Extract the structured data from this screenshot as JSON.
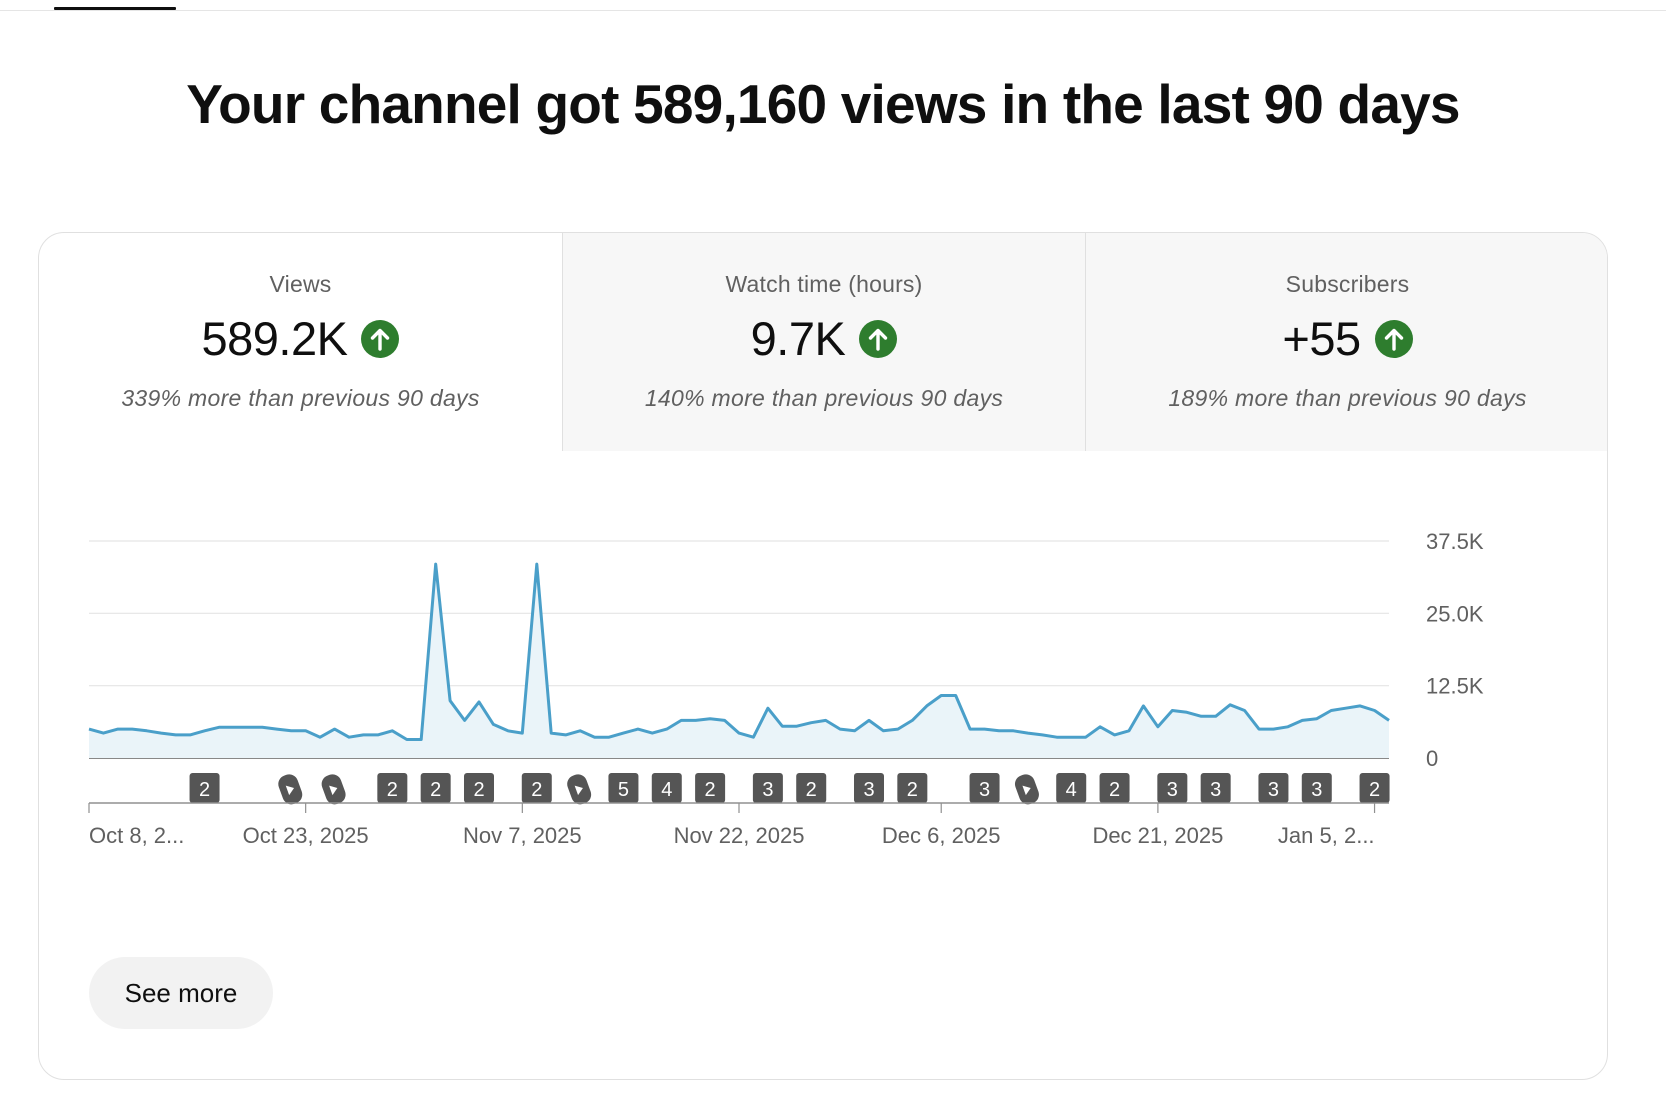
{
  "headline": "Your channel got 589,160 views in the last 90 days",
  "metrics": [
    {
      "label": "Views",
      "value": "589.2K",
      "compare": "339% more than previous 90 days",
      "trend": "up",
      "selected": true
    },
    {
      "label": "Watch time (hours)",
      "value": "9.7K",
      "compare": "140% more than previous 90 days",
      "trend": "up",
      "selected": false
    },
    {
      "label": "Subscribers",
      "value": "+55",
      "compare": "189% more than previous 90 days",
      "trend": "up",
      "selected": false
    }
  ],
  "colors": {
    "line": "#4a9fc9",
    "area": "#eaf4f9",
    "trend_up": "#2e7d2e",
    "marker_bg": "#555555"
  },
  "chart_data": {
    "type": "line",
    "series": [
      {
        "values": [
          5000,
          4300,
          5000,
          5000,
          4700,
          4300,
          4000,
          4000,
          4700,
          5300,
          5300,
          5300,
          5300,
          5000,
          4700,
          4700,
          3600,
          5000,
          3600,
          4000,
          4000,
          4700,
          3200,
          3200,
          33500,
          9900,
          6500,
          9700,
          5800,
          4700,
          4300,
          33500,
          4300,
          4000,
          4700,
          3600,
          3600,
          4300,
          5000,
          4300,
          5000,
          6500,
          6500,
          6800,
          6500,
          4300,
          3600,
          8600,
          5500,
          5500,
          6100,
          6500,
          5000,
          4700,
          6500,
          4700,
          5000,
          6500,
          9000,
          10800,
          10800,
          5000,
          5000,
          4700,
          4700,
          4300,
          4000,
          3600,
          3600,
          3600,
          5400,
          4000,
          4700,
          9000,
          5400,
          8200,
          7900,
          7200,
          7200,
          9200,
          8200,
          5000,
          5000,
          5400,
          6500,
          6800,
          8200,
          8600,
          9000,
          8200,
          6500
        ]
      }
    ],
    "x_start": "Oct 8, 2025",
    "x_end": "Jan 6, 2026",
    "x_ticks": [
      {
        "label": "Oct 8, 2...",
        "day": 0
      },
      {
        "label": "Oct 23, 2025",
        "day": 15
      },
      {
        "label": "Nov 7, 2025",
        "day": 30
      },
      {
        "label": "Nov 22, 2025",
        "day": 45
      },
      {
        "label": "Dec 6, 2025",
        "day": 59
      },
      {
        "label": "Dec 21, 2025",
        "day": 74
      },
      {
        "label": "Jan 5, 2...",
        "day": 89
      }
    ],
    "y_ticks": [
      "37.5K",
      "25.0K",
      "12.5K",
      "0"
    ],
    "y_values": [
      37500,
      25000,
      12500,
      0
    ],
    "ylim": [
      0,
      37500
    ],
    "grid": true,
    "markers": [
      {
        "day": 8,
        "label": "2",
        "type": "count"
      },
      {
        "day": 14,
        "label": "",
        "type": "short"
      },
      {
        "day": 17,
        "label": "",
        "type": "short"
      },
      {
        "day": 21,
        "label": "2",
        "type": "count"
      },
      {
        "day": 24,
        "label": "2",
        "type": "count"
      },
      {
        "day": 27,
        "label": "2",
        "type": "count"
      },
      {
        "day": 31,
        "label": "2",
        "type": "count"
      },
      {
        "day": 34,
        "label": "",
        "type": "short"
      },
      {
        "day": 37,
        "label": "5",
        "type": "count"
      },
      {
        "day": 40,
        "label": "4",
        "type": "count"
      },
      {
        "day": 43,
        "label": "2",
        "type": "count"
      },
      {
        "day": 47,
        "label": "3",
        "type": "count"
      },
      {
        "day": 50,
        "label": "2",
        "type": "count"
      },
      {
        "day": 54,
        "label": "3",
        "type": "count"
      },
      {
        "day": 57,
        "label": "2",
        "type": "count"
      },
      {
        "day": 62,
        "label": "3",
        "type": "count"
      },
      {
        "day": 65,
        "label": "",
        "type": "short"
      },
      {
        "day": 68,
        "label": "4",
        "type": "count"
      },
      {
        "day": 71,
        "label": "2",
        "type": "count"
      },
      {
        "day": 75,
        "label": "3",
        "type": "count"
      },
      {
        "day": 78,
        "label": "3",
        "type": "count"
      },
      {
        "day": 82,
        "label": "3",
        "type": "count"
      },
      {
        "day": 85,
        "label": "3",
        "type": "count"
      },
      {
        "day": 89,
        "label": "2",
        "type": "count"
      }
    ]
  },
  "see_more_label": "See more"
}
